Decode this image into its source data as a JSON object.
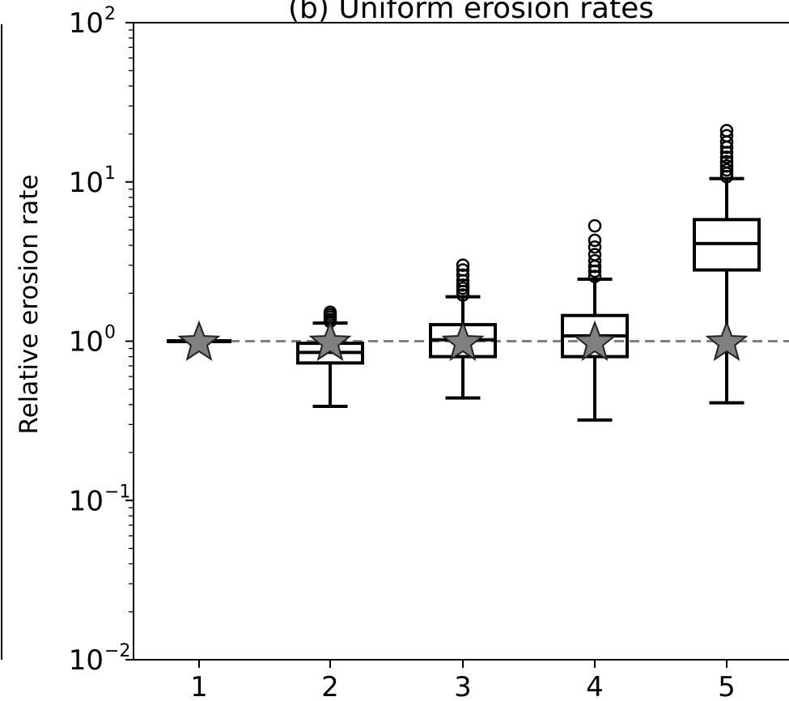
{
  "chart_data": {
    "type": "box",
    "title": "(b) Uniform erosion rates",
    "ylabel": "Relative erosion rate",
    "xlabel": "",
    "yscale": "log",
    "ylim": [
      0.01,
      100
    ],
    "y_ticks": [
      {
        "value": 0.01,
        "base": "10",
        "exp": "−2"
      },
      {
        "value": 0.1,
        "base": "10",
        "exp": "−1"
      },
      {
        "value": 1,
        "base": "10",
        "exp": "0"
      },
      {
        "value": 10,
        "base": "10",
        "exp": "1"
      },
      {
        "value": 100,
        "base": "10",
        "exp": "2"
      }
    ],
    "categories": [
      "1",
      "2",
      "3",
      "4",
      "5"
    ],
    "reference_line": {
      "y": 1,
      "style": "dashed",
      "color": "#808080"
    },
    "boxes": [
      {
        "category": "1",
        "whisker_low": 1.0,
        "q1": 1.0,
        "median": 1.0,
        "q3": 1.0,
        "whisker_high": 1.0,
        "outliers": []
      },
      {
        "category": "2",
        "whisker_low": 0.39,
        "q1": 0.73,
        "median": 0.85,
        "q3": 0.97,
        "whisker_high": 1.3,
        "outliers": [
          1.33,
          1.37,
          1.42,
          1.47,
          1.52
        ]
      },
      {
        "category": "3",
        "whisker_low": 0.44,
        "q1": 0.8,
        "median": 1.02,
        "q3": 1.27,
        "whisker_high": 1.9,
        "outliers": [
          1.95,
          2.05,
          2.15,
          2.25,
          2.4,
          2.6,
          2.8,
          3.0
        ]
      },
      {
        "category": "4",
        "whisker_low": 0.32,
        "q1": 0.8,
        "median": 1.08,
        "q3": 1.45,
        "whisker_high": 2.45,
        "outliers": [
          2.55,
          2.75,
          2.95,
          3.2,
          3.5,
          3.9,
          4.3,
          5.3
        ]
      },
      {
        "category": "5",
        "whisker_low": 0.41,
        "q1": 2.8,
        "median": 4.1,
        "q3": 5.8,
        "whisker_high": 10.5,
        "outliers": [
          10.8,
          11.3,
          11.9,
          12.6,
          13.4,
          14.3,
          15.3,
          16.5,
          17.8,
          19.5,
          21.0
        ]
      }
    ],
    "markers": [
      {
        "category": "1",
        "y": 1,
        "shape": "star",
        "color": "#808080"
      },
      {
        "category": "2",
        "y": 1,
        "shape": "star",
        "color": "#808080"
      },
      {
        "category": "3",
        "y": 1,
        "shape": "star",
        "color": "#808080"
      },
      {
        "category": "4",
        "y": 1,
        "shape": "star",
        "color": "#808080"
      },
      {
        "category": "5",
        "y": 1,
        "shape": "star",
        "color": "#808080"
      }
    ],
    "colors": {
      "box": "#000000",
      "star_fill": "#808080",
      "star_edge": "#222222",
      "reference": "#808080"
    }
  }
}
